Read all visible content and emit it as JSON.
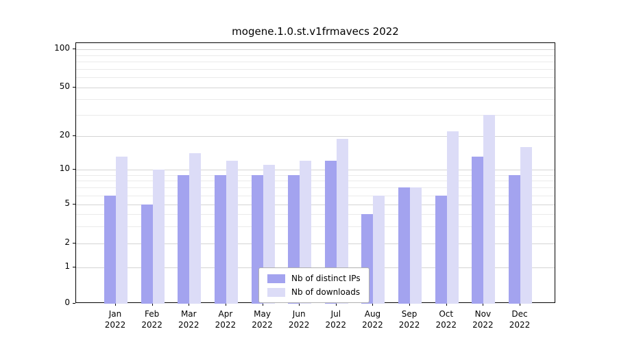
{
  "chart_data": {
    "type": "bar",
    "title": "mogene.1.0.st.v1frmavecs 2022",
    "yscale": "symlog",
    "grid": "both",
    "ylim": [
      0,
      115
    ],
    "xlabel": "",
    "ylabel": "",
    "months": [
      "Jan",
      "Feb",
      "Mar",
      "Apr",
      "May",
      "Jun",
      "Jul",
      "Aug",
      "Sep",
      "Oct",
      "Nov",
      "Dec"
    ],
    "year": "2022",
    "y_ticks": [
      0,
      1,
      2,
      5,
      10,
      20,
      50,
      100
    ],
    "y_minor_ticks": [
      3,
      4,
      6,
      7,
      8,
      9,
      30,
      40,
      60,
      70,
      80,
      90
    ],
    "series": [
      {
        "name": "Nb of distinct IPs",
        "color": "#a3a3ef",
        "values": [
          6,
          5,
          9,
          9,
          9,
          9,
          12,
          4,
          7,
          6,
          13,
          9
        ]
      },
      {
        "name": "Nb of downloads",
        "color": "#dcdcf7",
        "values": [
          13,
          10,
          14,
          12,
          11,
          12,
          19,
          6,
          7,
          22,
          30,
          16
        ]
      }
    ],
    "legend_position": "lower center"
  }
}
